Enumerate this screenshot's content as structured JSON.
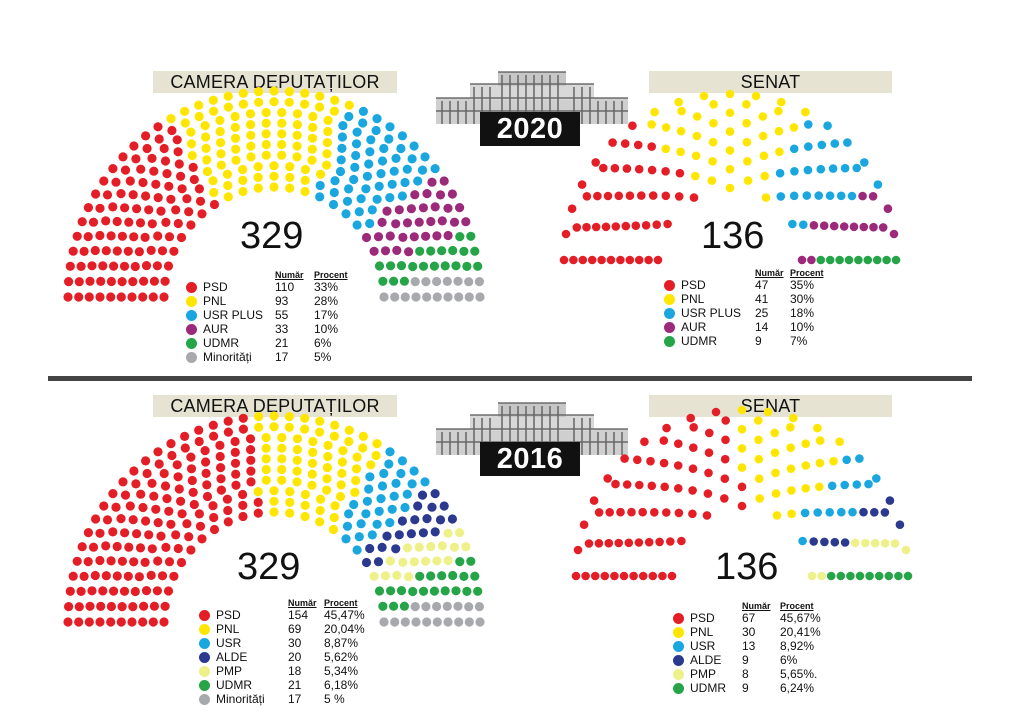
{
  "colors": {
    "PSD": "#e41e26",
    "PNL": "#ffe600",
    "USR PLUS": "#1aa7e0",
    "USR": "#1aa7e0",
    "AUR": "#9c2a7a",
    "UDMR": "#26a448",
    "Minorități": "#a7a9ac",
    "ALDE": "#2b3a8e",
    "PMP": "#eef08a"
  },
  "legend_headers": {
    "number": "Număr",
    "percent": "Procent"
  },
  "panels": {
    "y2020": {
      "year": "2020",
      "chamber": {
        "title": "CAMERA DEPUTAȚILOR",
        "total": "329",
        "parties": [
          {
            "name": "PSD",
            "number": "110",
            "percent": "33%"
          },
          {
            "name": "PNL",
            "number": "93",
            "percent": "28%"
          },
          {
            "name": "USR PLUS",
            "number": "55",
            "percent": "17%"
          },
          {
            "name": "AUR",
            "number": "33",
            "percent": "10%"
          },
          {
            "name": "UDMR",
            "number": "21",
            "percent": "6%"
          },
          {
            "name": "Minorități",
            "number": "17",
            "percent": "5%"
          }
        ]
      },
      "senate": {
        "title": "SENAT",
        "total": "136",
        "parties": [
          {
            "name": "PSD",
            "number": "47",
            "percent": "35%"
          },
          {
            "name": "PNL",
            "number": "41",
            "percent": "30%"
          },
          {
            "name": "USR PLUS",
            "number": "25",
            "percent": "18%"
          },
          {
            "name": "AUR",
            "number": "14",
            "percent": "10%"
          },
          {
            "name": "UDMR",
            "number": "9",
            "percent": "7%"
          }
        ]
      }
    },
    "y2016": {
      "year": "2016",
      "chamber": {
        "title": "CAMERA DEPUTAȚILOR",
        "total": "329",
        "parties": [
          {
            "name": "PSD",
            "number": "154",
            "percent": "45,47%"
          },
          {
            "name": "PNL",
            "number": "69",
            "percent": "20,04%"
          },
          {
            "name": "USR",
            "number": "30",
            "percent": "8,87%"
          },
          {
            "name": "ALDE",
            "number": "20",
            "percent": "5,62%"
          },
          {
            "name": "PMP",
            "number": "18",
            "percent": "5,34%"
          },
          {
            "name": "UDMR",
            "number": "21",
            "percent": "6,18%"
          },
          {
            "name": "Minorități",
            "number": "17",
            "percent": "5 %"
          }
        ]
      },
      "senate": {
        "title": "SENAT",
        "total": "136",
        "parties": [
          {
            "name": "PSD",
            "number": "67",
            "percent": "45,67%"
          },
          {
            "name": "PNL",
            "number": "30",
            "percent": "20,41%"
          },
          {
            "name": "USR",
            "number": "13",
            "percent": "8,92%"
          },
          {
            "name": "ALDE",
            "number": "9",
            "percent": "6%"
          },
          {
            "name": "PMP",
            "number": "8",
            "percent": "5,65%."
          },
          {
            "name": "UDMR",
            "number": "9",
            "percent": "6,24%"
          }
        ]
      }
    }
  },
  "chart_data": [
    {
      "type": "parliament",
      "year": "2020",
      "title": "CAMERA DEPUTAȚILOR",
      "total": 329,
      "series": [
        {
          "name": "PSD",
          "value": 110,
          "percent": 33
        },
        {
          "name": "PNL",
          "value": 93,
          "percent": 28
        },
        {
          "name": "USR PLUS",
          "value": 55,
          "percent": 17
        },
        {
          "name": "AUR",
          "value": 33,
          "percent": 10
        },
        {
          "name": "UDMR",
          "value": 21,
          "percent": 6
        },
        {
          "name": "Minorități",
          "value": 17,
          "percent": 5
        }
      ]
    },
    {
      "type": "parliament",
      "year": "2020",
      "title": "SENAT",
      "total": 136,
      "series": [
        {
          "name": "PSD",
          "value": 47,
          "percent": 35
        },
        {
          "name": "PNL",
          "value": 41,
          "percent": 30
        },
        {
          "name": "USR PLUS",
          "value": 25,
          "percent": 18
        },
        {
          "name": "AUR",
          "value": 14,
          "percent": 10
        },
        {
          "name": "UDMR",
          "value": 9,
          "percent": 7
        }
      ]
    },
    {
      "type": "parliament",
      "year": "2016",
      "title": "CAMERA DEPUTAȚILOR",
      "total": 329,
      "series": [
        {
          "name": "PSD",
          "value": 154,
          "percent": 45.47
        },
        {
          "name": "PNL",
          "value": 69,
          "percent": 20.04
        },
        {
          "name": "USR",
          "value": 30,
          "percent": 8.87
        },
        {
          "name": "ALDE",
          "value": 20,
          "percent": 5.62
        },
        {
          "name": "PMP",
          "value": 18,
          "percent": 5.34
        },
        {
          "name": "UDMR",
          "value": 21,
          "percent": 6.18
        },
        {
          "name": "Minorități",
          "value": 17,
          "percent": 5
        }
      ]
    },
    {
      "type": "parliament",
      "year": "2016",
      "title": "SENAT",
      "total": 136,
      "series": [
        {
          "name": "PSD",
          "value": 67,
          "percent": 45.67
        },
        {
          "name": "PNL",
          "value": 30,
          "percent": 20.41
        },
        {
          "name": "USR",
          "value": 13,
          "percent": 8.92
        },
        {
          "name": "ALDE",
          "value": 9,
          "percent": 6
        },
        {
          "name": "PMP",
          "value": 8,
          "percent": 5.65
        },
        {
          "name": "UDMR",
          "value": 9,
          "percent": 6.24
        }
      ]
    }
  ]
}
